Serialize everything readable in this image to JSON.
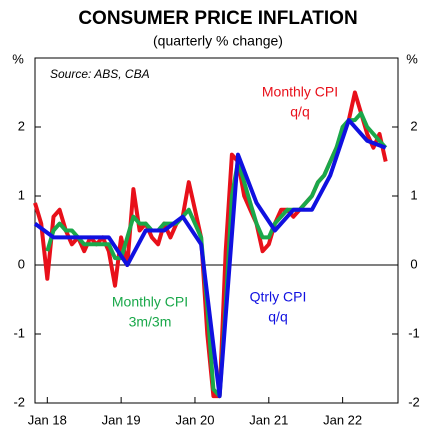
{
  "chart_data": {
    "type": "line",
    "title": "CONSUMER PRICE INFLATION",
    "subtitle": "(quarterly % change)",
    "annotation": "Source: ABS, CBA",
    "ylabel": "%",
    "y2label": "%",
    "xlim": [
      -2,
      57
    ],
    "xticks": [
      {
        "value": 0,
        "label": "Jan 18"
      },
      {
        "value": 12,
        "label": "Jan 19"
      },
      {
        "value": 24,
        "label": "Jan 20"
      },
      {
        "value": 36,
        "label": "Jan 21"
      },
      {
        "value": 48,
        "label": "Jan 22"
      }
    ],
    "ylim": [
      -2,
      3
    ],
    "yticks": [
      -2,
      -1,
      0,
      1,
      2
    ],
    "y2lim": [
      -2,
      3
    ],
    "y2ticks": [
      -2,
      -1,
      0,
      1,
      2
    ],
    "series": [
      {
        "name": [
          "Monthly CPI",
          "q/q"
        ],
        "color": "#e8101a",
        "x": [
          -2,
          -1,
          0,
          1,
          2,
          3,
          4,
          5,
          6,
          7,
          8,
          9,
          10,
          11,
          12,
          13,
          14,
          15,
          16,
          17,
          18,
          19,
          20,
          21,
          22,
          23,
          24,
          25,
          26,
          27,
          28,
          29,
          30,
          31,
          32,
          33,
          34,
          35,
          36,
          37,
          38,
          39,
          40,
          41,
          42,
          43,
          44,
          45,
          46,
          47,
          48,
          49,
          50,
          51,
          52,
          53,
          54,
          55
        ],
        "values": [
          0.9,
          0.6,
          -0.2,
          0.7,
          0.8,
          0.5,
          0.3,
          0.4,
          0.2,
          0.4,
          0.3,
          0.4,
          0.2,
          -0.3,
          0.4,
          0.0,
          1.1,
          0.5,
          0.6,
          0.4,
          0.3,
          0.6,
          0.4,
          0.6,
          0.7,
          1.2,
          0.8,
          0.4,
          -1.0,
          -1.9,
          -1.9,
          0.2,
          1.6,
          1.5,
          1.0,
          0.8,
          0.6,
          0.2,
          0.3,
          0.6,
          0.8,
          0.8,
          0.7,
          0.8,
          0.9,
          1.0,
          1.2,
          1.3,
          1.5,
          1.7,
          1.9,
          2.1,
          2.5,
          2.2,
          1.9,
          1.7,
          1.9,
          1.5
        ]
      },
      {
        "name": [
          "Monthly CPI",
          "3m/3m"
        ],
        "color": "#1aa84a",
        "x": [
          0,
          1,
          2,
          3,
          4,
          5,
          6,
          7,
          8,
          9,
          10,
          11,
          12,
          13,
          14,
          15,
          16,
          17,
          18,
          19,
          20,
          21,
          22,
          23,
          24,
          25,
          26,
          27,
          28,
          29,
          30,
          31,
          32,
          33,
          34,
          35,
          36,
          37,
          38,
          39,
          40,
          41,
          42,
          43,
          44,
          45,
          46,
          47,
          48,
          49,
          50,
          51,
          52,
          53,
          54,
          55
        ],
        "values": [
          0.2,
          0.5,
          0.6,
          0.5,
          0.5,
          0.4,
          0.3,
          0.3,
          0.3,
          0.3,
          0.3,
          0.1,
          0.1,
          0.4,
          0.7,
          0.6,
          0.6,
          0.5,
          0.5,
          0.6,
          0.6,
          0.6,
          0.7,
          0.8,
          0.6,
          0.4,
          -0.6,
          -1.8,
          -1.9,
          -0.6,
          1.0,
          1.5,
          1.2,
          0.9,
          0.6,
          0.4,
          0.4,
          0.6,
          0.7,
          0.8,
          0.8,
          0.8,
          0.9,
          1.0,
          1.2,
          1.3,
          1.5,
          1.7,
          2.0,
          2.1,
          2.1,
          2.2,
          2.0,
          1.9,
          1.8,
          1.7
        ]
      },
      {
        "name": [
          "Qtrly CPI",
          "q/q"
        ],
        "color": "#1010e0",
        "x": [
          -2,
          1,
          4,
          7,
          10,
          13,
          16,
          19,
          22,
          25,
          28,
          31,
          34,
          37,
          40,
          43,
          46,
          49,
          52,
          55
        ],
        "values": [
          0.6,
          0.4,
          0.4,
          0.4,
          0.4,
          0.0,
          0.5,
          0.5,
          0.7,
          0.3,
          -1.9,
          1.6,
          0.9,
          0.5,
          0.8,
          0.8,
          1.3,
          2.1,
          1.8,
          1.7
        ]
      }
    ]
  }
}
